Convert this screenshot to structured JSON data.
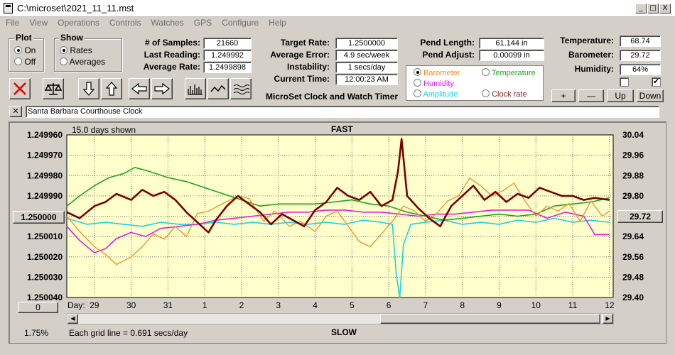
{
  "window": {
    "title": "C:\\microset\\2021_11_11.mst",
    "min": "_",
    "max": "□",
    "close": "X"
  },
  "menu": [
    "File",
    "View",
    "Operations",
    "Controls",
    "Watches",
    "GPS",
    "Configure",
    "Help"
  ],
  "plot_group": {
    "label": "Plot",
    "options": [
      "On",
      "Off"
    ],
    "selected": "On"
  },
  "show_group": {
    "label": "Show",
    "options": [
      "Rates",
      "Averages"
    ],
    "selected": "Rates"
  },
  "stats": {
    "samples_label": "# of Samples:",
    "samples": "21660",
    "last_label": "Last Reading:",
    "last": "1.249992",
    "avg_label": "Average Rate:",
    "avg": "1.2499898"
  },
  "rates": {
    "target_label": "Target Rate:",
    "target": "1.2500000",
    "avgerr_label": "Average Error:",
    "avgerr": "4.9 sec/week",
    "instab_label": "Instability:",
    "instab": "1 secs/day",
    "time_label": "Current Time:",
    "time": "12:00:23 AM"
  },
  "pendulum": {
    "length_label": "Pend Length:",
    "length": "61.144 in",
    "adjust_label": "Pend Adjust:",
    "adjust": "0.00099 in"
  },
  "environment": {
    "temp_label": "Temperature:",
    "temp": "68.74",
    "baro_label": "Barometer:",
    "baro": "29.72",
    "hum_label": "Humidity:",
    "hum": "64%",
    "check1": "",
    "check2": "✔"
  },
  "app_caption": "MicroSet Clock and Watch Timer",
  "legend": [
    {
      "label": "Barometer",
      "color": "#f28c28",
      "selected": true
    },
    {
      "label": "Temperature",
      "color": "#1aa61a",
      "selected": false
    },
    {
      "label": "Humidity",
      "color": "#e020e0",
      "selected": false
    },
    {
      "label": "Clock rate",
      "color": "#8b1a1a",
      "selected": false
    },
    {
      "label": "Amplitude",
      "color": "#19d3e6",
      "selected": false
    }
  ],
  "scale_buttons": {
    "plus": "+",
    "minus": "—",
    "up": "Up",
    "down": "Down"
  },
  "clock_name": "Santa Barbara Courthouse Clock",
  "clear_button": "✕",
  "colors": {
    "plot_bg": "#ffffcc",
    "grid": "#6e6e6e",
    "rate": "#7b0000",
    "barometer": "#f28c28",
    "temperature": "#1aa61a",
    "humidity": "#e020e0",
    "amplitude": "#19d3e6"
  },
  "chart_data": {
    "type": "line",
    "top_label": "FAST",
    "bottom_label": "SLOW",
    "days_shown": "15.0 days shown",
    "grid_note": "Each grid line = 0.691 secs/day",
    "y_left_ticks": [
      "1.249960",
      "1.249970",
      "1.249980",
      "1.249990",
      "1.250000",
      "1.250010",
      "1.250020",
      "1.250030",
      "1.250040"
    ],
    "y_right_ticks": [
      "30.04",
      "29.96",
      "29.88",
      "29.80",
      "29.72",
      "29.64",
      "29.56",
      "29.48",
      "29.40"
    ],
    "x_label": "Day:",
    "x_ticks": [
      "29",
      "30",
      "31",
      "1",
      "2",
      "3",
      "4",
      "5",
      "6",
      "7",
      "8",
      "9",
      "10",
      "11",
      "12"
    ],
    "x_range": [
      28.25,
      43.1
    ],
    "y_left_range": [
      1.24996,
      1.25004
    ],
    "y_right_range": [
      29.4,
      30.04
    ],
    "left_value_button": "1.250000",
    "right_value_button": "29.72",
    "bottom_left_button": "0",
    "percent": "1.75%",
    "series": [
      {
        "name": "Clock rate",
        "axis": "left",
        "x": [
          28.25,
          28.6,
          29.0,
          29.3,
          29.6,
          30.0,
          30.3,
          30.6,
          30.9,
          31.2,
          31.5,
          31.8,
          32.1,
          32.3,
          32.6,
          32.9,
          33.2,
          33.5,
          33.8,
          34.1,
          34.4,
          34.7,
          35.0,
          35.3,
          35.6,
          35.9,
          36.2,
          36.5,
          36.8,
          37.1,
          37.25,
          37.35,
          37.5,
          37.8,
          38.1,
          38.4,
          38.7,
          39.0,
          39.3,
          39.6,
          39.9,
          40.2,
          40.5,
          40.8,
          41.1,
          41.4,
          41.7,
          42.0,
          42.3,
          42.6,
          43.0
        ],
        "y": [
          1.249998,
          1.250001,
          1.249995,
          1.249993,
          1.249989,
          1.249992,
          1.249987,
          1.24999,
          1.249988,
          1.249992,
          1.249998,
          1.250003,
          1.250008,
          1.250002,
          1.249995,
          1.24999,
          1.249994,
          1.249998,
          1.250004,
          1.249999,
          1.250002,
          1.250005,
          1.249997,
          1.249993,
          1.249986,
          1.24999,
          1.249992,
          1.249988,
          1.249995,
          1.249992,
          1.249978,
          1.249962,
          1.24999,
          1.249996,
          1.250001,
          1.250005,
          1.249995,
          1.24999,
          1.249985,
          1.249992,
          1.249988,
          1.249993,
          1.249989,
          1.249991,
          1.249986,
          1.249988,
          1.24999,
          1.24999,
          1.249992,
          1.249991,
          1.249992
        ]
      },
      {
        "name": "Barometer",
        "axis": "right",
        "x": [
          28.25,
          28.6,
          29.0,
          29.3,
          29.6,
          30.0,
          30.3,
          30.6,
          30.9,
          31.2,
          31.5,
          31.8,
          32.1,
          32.5,
          32.9,
          33.2,
          33.6,
          33.9,
          34.3,
          34.6,
          35.0,
          35.3,
          35.6,
          35.9,
          36.2,
          36.5,
          36.8,
          37.1,
          37.4,
          37.7,
          38.0,
          38.3,
          38.6,
          38.9,
          39.2,
          39.5,
          39.8,
          40.1,
          40.4,
          40.7,
          41.0,
          41.3,
          41.6,
          41.9,
          42.2,
          42.5,
          42.8,
          43.0
        ],
        "y": [
          29.72,
          29.66,
          29.6,
          29.57,
          29.53,
          29.56,
          29.6,
          29.65,
          29.63,
          29.68,
          29.64,
          29.73,
          29.74,
          29.77,
          29.8,
          29.79,
          29.7,
          29.74,
          29.68,
          29.7,
          29.66,
          29.72,
          29.74,
          29.68,
          29.62,
          29.6,
          29.65,
          29.7,
          29.76,
          29.74,
          29.7,
          29.73,
          29.78,
          29.8,
          29.87,
          29.84,
          29.8,
          29.82,
          29.85,
          29.78,
          29.72,
          29.76,
          29.74,
          29.77,
          29.7,
          29.78,
          29.72,
          29.74
        ]
      },
      {
        "name": "Temperature",
        "axis": "left",
        "x": [
          28.25,
          28.6,
          29.0,
          29.4,
          29.8,
          30.1,
          30.5,
          31.0,
          31.5,
          32.0,
          32.5,
          33.0,
          33.5,
          34.0,
          34.5,
          35.0,
          35.5,
          36.0,
          36.5,
          37.0,
          37.5,
          38.0,
          38.5,
          39.0,
          39.5,
          40.0,
          40.5,
          41.0,
          41.5,
          42.0,
          42.5,
          43.0
        ],
        "y": [
          1.249995,
          1.24999,
          1.249985,
          1.249981,
          1.249979,
          1.249976,
          1.249978,
          1.249981,
          1.249983,
          1.249986,
          1.249989,
          1.249992,
          1.249995,
          1.249994,
          1.249994,
          1.249994,
          1.249993,
          1.249992,
          1.249994,
          1.249995,
          1.249998,
          1.25,
          1.250002,
          1.250001,
          1.25,
          1.249999,
          1.25,
          1.249999,
          1.249995,
          1.249994,
          1.249993,
          1.249991
        ]
      },
      {
        "name": "Humidity",
        "axis": "left",
        "x": [
          28.25,
          28.6,
          29.0,
          29.3,
          29.6,
          30.0,
          30.4,
          30.8,
          31.3,
          31.8,
          32.3,
          32.8,
          33.3,
          33.8,
          34.3,
          34.8,
          35.3,
          35.8,
          36.3,
          36.8,
          37.3,
          37.8,
          38.3,
          38.8,
          39.3,
          39.8,
          40.3,
          40.8,
          41.3,
          41.8,
          42.3,
          42.6,
          43.0
        ],
        "y": [
          1.250005,
          1.250012,
          1.250018,
          1.250016,
          1.250011,
          1.250008,
          1.25001,
          1.250006,
          1.250005,
          1.250004,
          1.250002,
          1.250001,
          1.25,
          1.249999,
          1.249998,
          1.249998,
          1.249997,
          1.249997,
          1.249998,
          1.249998,
          1.249999,
          1.25,
          1.249999,
          1.249999,
          1.249998,
          1.249997,
          1.249997,
          1.249997,
          1.250001,
          1.249998,
          1.25,
          1.250009,
          1.250009
        ]
      },
      {
        "name": "Amplitude",
        "axis": "left",
        "x": [
          28.25,
          28.8,
          29.3,
          29.8,
          30.3,
          30.8,
          31.3,
          31.8,
          32.3,
          32.8,
          33.3,
          33.8,
          34.3,
          34.8,
          35.3,
          35.8,
          36.3,
          36.8,
          37.1,
          37.2,
          37.3,
          37.4,
          37.6,
          38.0,
          38.5,
          39.0,
          39.5,
          40.0,
          40.5,
          41.0,
          41.5,
          42.0,
          42.5,
          43.0
        ],
        "y": [
          1.250001,
          1.250004,
          1.250003,
          1.250004,
          1.250005,
          1.250003,
          1.250004,
          1.250004,
          1.250003,
          1.250004,
          1.250003,
          1.250004,
          1.250003,
          1.250004,
          1.250003,
          1.250004,
          1.250002,
          1.250003,
          1.250004,
          1.250028,
          1.25004,
          1.250014,
          1.250004,
          1.250003,
          1.250002,
          1.250004,
          1.250003,
          1.250004,
          1.250002,
          1.250003,
          1.250001,
          1.250003,
          1.250002,
          1.250003
        ]
      }
    ]
  }
}
